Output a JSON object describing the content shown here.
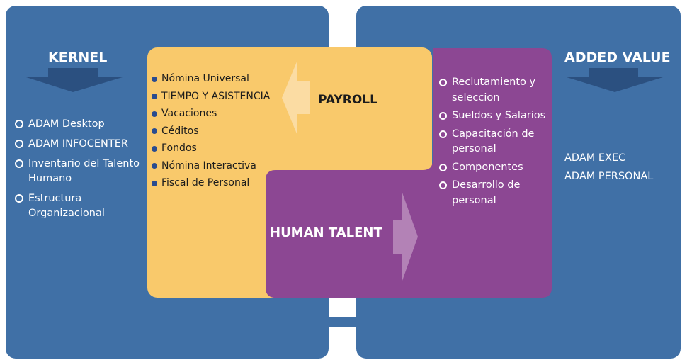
{
  "kernel": {
    "title": "KERNEL",
    "items": [
      "ADAM Desktop",
      "ADAM INFOCENTER",
      "Inventario del Talento Humano",
      "Estructura Organizacional"
    ]
  },
  "added_value": {
    "title": "ADDED VALUE",
    "items": [
      "ADAM EXEC",
      "ADAM PERSONAL"
    ]
  },
  "payroll": {
    "title": "PAYROLL",
    "items": [
      "Nómina Universal",
      "TIEMPO Y ASISTENCIA",
      "Vacaciones",
      "Céditos",
      "Fondos",
      "Nómina Interactiva",
      "Fiscal de Personal"
    ]
  },
  "human_talent": {
    "title": "HUMAN TALENT",
    "items": [
      "Reclutamiento y seleccion",
      "Sueldos y Salarios",
      "Capacitación de personal",
      "Componentes",
      "Desarrollo de personal"
    ]
  },
  "colors": {
    "panel_blue": "#4070a6",
    "payroll_yellow": "#f9c96b",
    "talent_purple": "#8c4793",
    "arrow_navy": "#2b5080",
    "bullet_navy": "#2a4c8f"
  }
}
